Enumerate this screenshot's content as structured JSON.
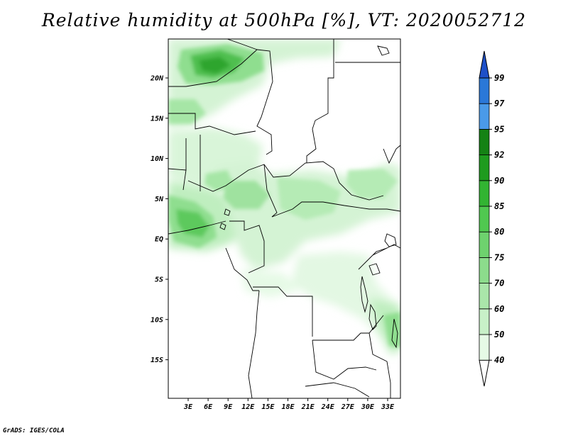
{
  "title": "Relative humidity at 500hPa [%], VT: 2020052712",
  "credit": "GrADS: IGES/COLA",
  "map": {
    "lat_labels": [
      "20N",
      "15N",
      "10N",
      "5N",
      "EQ",
      "5S",
      "10S",
      "15S"
    ],
    "lon_labels": [
      "3E",
      "6E",
      "9E",
      "12E",
      "15E",
      "18E",
      "21E",
      "24E",
      "27E",
      "30E",
      "33E"
    ]
  },
  "colorbar": {
    "labels": [
      "40",
      "50",
      "60",
      "70",
      "75",
      "80",
      "85",
      "90",
      "92",
      "95",
      "97",
      "99"
    ],
    "colors": [
      "#ffffff",
      "#e6fae6",
      "#c8f0c8",
      "#aae6aa",
      "#8cdc8c",
      "#6ed26e",
      "#50c850",
      "#32b432",
      "#1e9b1e",
      "#148214",
      "#4a9ae8",
      "#2a78d8",
      "#1e50c8"
    ]
  },
  "colors": {
    "coast": "#000000",
    "frame": "#000000"
  }
}
